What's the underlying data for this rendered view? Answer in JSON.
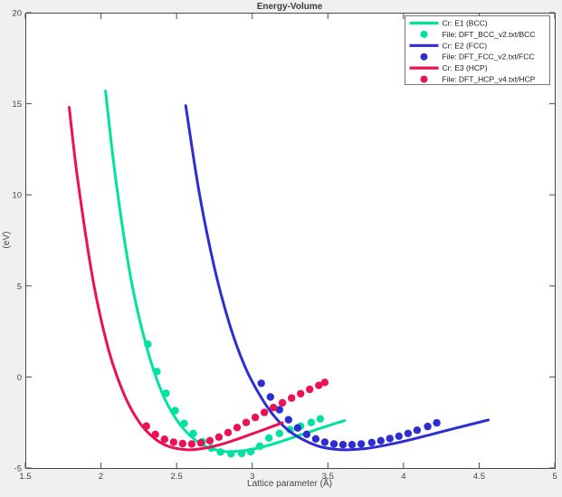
{
  "figure": {
    "background": "#f0f0f0",
    "plot_background": "#ffffff",
    "frame_color": "#4a4a4a",
    "legend_border_color": "#777777"
  },
  "chart_data": {
    "type": "line",
    "title": "Energy-Volume",
    "xlabel": "Lattice parameter (Å)",
    "ylabel": "(eV)",
    "xlim": [
      1.5,
      5
    ],
    "ylim": [
      -5,
      20
    ],
    "xticks": [
      1.5,
      2,
      2.5,
      3,
      3.5,
      4,
      4.5,
      5
    ],
    "xtick_labels": [
      "1.5",
      "2",
      "2.5",
      "3",
      "3.5",
      "4",
      "4.5",
      "5"
    ],
    "yticks": [
      -5,
      0,
      5,
      10,
      15,
      20
    ],
    "ytick_labels": [
      "-5",
      "0",
      "5",
      "10",
      "15",
      "20"
    ],
    "grid": false,
    "legend_position": "top-right",
    "series": [
      {
        "id": "bcc-fit-line",
        "name": "Cr: E1 (BCC)",
        "style": "line",
        "color": "#00e3a0",
        "points": [
          [
            2.03,
            15.7
          ],
          [
            2.1,
            10.7
          ],
          [
            2.2,
            5.3
          ],
          [
            2.3,
            1.7
          ],
          [
            2.4,
            -0.8
          ],
          [
            2.5,
            -2.35
          ],
          [
            2.6,
            -3.3
          ],
          [
            2.7,
            -3.85
          ],
          [
            2.8,
            -4.07
          ],
          [
            2.86,
            -4.1
          ],
          [
            2.95,
            -4.04
          ],
          [
            3.05,
            -3.88
          ],
          [
            3.15,
            -3.65
          ],
          [
            3.25,
            -3.38
          ],
          [
            3.35,
            -3.1
          ],
          [
            3.45,
            -2.82
          ],
          [
            3.55,
            -2.55
          ],
          [
            3.61,
            -2.4
          ]
        ]
      },
      {
        "id": "bcc-data-points",
        "name": "File: DFT_BCC_v2.txt/BCC",
        "style": "scatter",
        "color": "#00e3a0",
        "points": [
          [
            2.31,
            1.8
          ],
          [
            2.37,
            0.3
          ],
          [
            2.43,
            -0.9
          ],
          [
            2.49,
            -1.85
          ],
          [
            2.55,
            -2.55
          ],
          [
            2.61,
            -3.1
          ],
          [
            2.67,
            -3.55
          ],
          [
            2.73,
            -3.9
          ],
          [
            2.79,
            -4.12
          ],
          [
            2.86,
            -4.22
          ],
          [
            2.93,
            -4.2
          ],
          [
            2.99,
            -4.1
          ],
          [
            3.05,
            -3.8
          ],
          [
            3.11,
            -3.35
          ],
          [
            3.18,
            -3.1
          ],
          [
            3.25,
            -2.9
          ],
          [
            3.32,
            -2.7
          ],
          [
            3.39,
            -2.5
          ],
          [
            3.45,
            -2.3
          ]
        ]
      },
      {
        "id": "fcc-fit-line",
        "name": "Cr: E2 (FCC)",
        "style": "line",
        "color": "#2d2dd2",
        "points": [
          [
            2.56,
            14.9
          ],
          [
            2.65,
            10.1
          ],
          [
            2.75,
            6.0
          ],
          [
            2.85,
            2.9
          ],
          [
            2.95,
            0.6
          ],
          [
            3.05,
            -1.0
          ],
          [
            3.15,
            -2.2
          ],
          [
            3.25,
            -3.0
          ],
          [
            3.35,
            -3.5
          ],
          [
            3.45,
            -3.83
          ],
          [
            3.55,
            -3.97
          ],
          [
            3.62,
            -4.0
          ],
          [
            3.75,
            -3.93
          ],
          [
            3.9,
            -3.72
          ],
          [
            4.05,
            -3.44
          ],
          [
            4.2,
            -3.12
          ],
          [
            4.35,
            -2.8
          ],
          [
            4.56,
            -2.36
          ]
        ]
      },
      {
        "id": "fcc-data-points",
        "name": "File: DFT_FCC_v2.txt/FCC",
        "style": "scatter",
        "color": "#2d2dd2",
        "points": [
          [
            3.06,
            -0.35
          ],
          [
            3.12,
            -1.1
          ],
          [
            3.18,
            -1.8
          ],
          [
            3.24,
            -2.35
          ],
          [
            3.3,
            -2.8
          ],
          [
            3.36,
            -3.15
          ],
          [
            3.42,
            -3.4
          ],
          [
            3.48,
            -3.58
          ],
          [
            3.54,
            -3.68
          ],
          [
            3.6,
            -3.72
          ],
          [
            3.66,
            -3.72
          ],
          [
            3.72,
            -3.68
          ],
          [
            3.79,
            -3.6
          ],
          [
            3.85,
            -3.5
          ],
          [
            3.91,
            -3.38
          ],
          [
            3.97,
            -3.25
          ],
          [
            4.03,
            -3.1
          ],
          [
            4.09,
            -2.92
          ],
          [
            4.16,
            -2.72
          ],
          [
            4.22,
            -2.52
          ]
        ]
      },
      {
        "id": "hcp-fit-line",
        "name": "Cr: E3 (HCP)",
        "style": "line",
        "color": "#eb1254",
        "points": [
          [
            1.79,
            14.8
          ],
          [
            1.85,
            10.6
          ],
          [
            1.95,
            5.2
          ],
          [
            2.05,
            1.5
          ],
          [
            2.15,
            -0.9
          ],
          [
            2.25,
            -2.45
          ],
          [
            2.35,
            -3.35
          ],
          [
            2.45,
            -3.82
          ],
          [
            2.58,
            -4.0
          ],
          [
            2.7,
            -3.89
          ],
          [
            2.8,
            -3.69
          ],
          [
            2.9,
            -3.42
          ],
          [
            3.0,
            -3.12
          ],
          [
            3.1,
            -2.82
          ],
          [
            3.2,
            -2.51
          ]
        ]
      },
      {
        "id": "hcp-data-points",
        "name": "File: DFT_HCP_v4.txt/HCP",
        "style": "scatter",
        "color": "#eb1254",
        "points": [
          [
            2.3,
            -2.7
          ],
          [
            2.36,
            -3.15
          ],
          [
            2.42,
            -3.42
          ],
          [
            2.48,
            -3.58
          ],
          [
            2.54,
            -3.66
          ],
          [
            2.6,
            -3.68
          ],
          [
            2.66,
            -3.62
          ],
          [
            2.72,
            -3.5
          ],
          [
            2.78,
            -3.3
          ],
          [
            2.84,
            -3.05
          ],
          [
            2.9,
            -2.78
          ],
          [
            2.96,
            -2.5
          ],
          [
            3.02,
            -2.22
          ],
          [
            3.08,
            -1.95
          ],
          [
            3.14,
            -1.68
          ],
          [
            3.2,
            -1.42
          ],
          [
            3.26,
            -1.16
          ],
          [
            3.32,
            -0.92
          ],
          [
            3.38,
            -0.68
          ],
          [
            3.44,
            -0.46
          ],
          [
            3.48,
            -0.3
          ]
        ]
      }
    ]
  }
}
